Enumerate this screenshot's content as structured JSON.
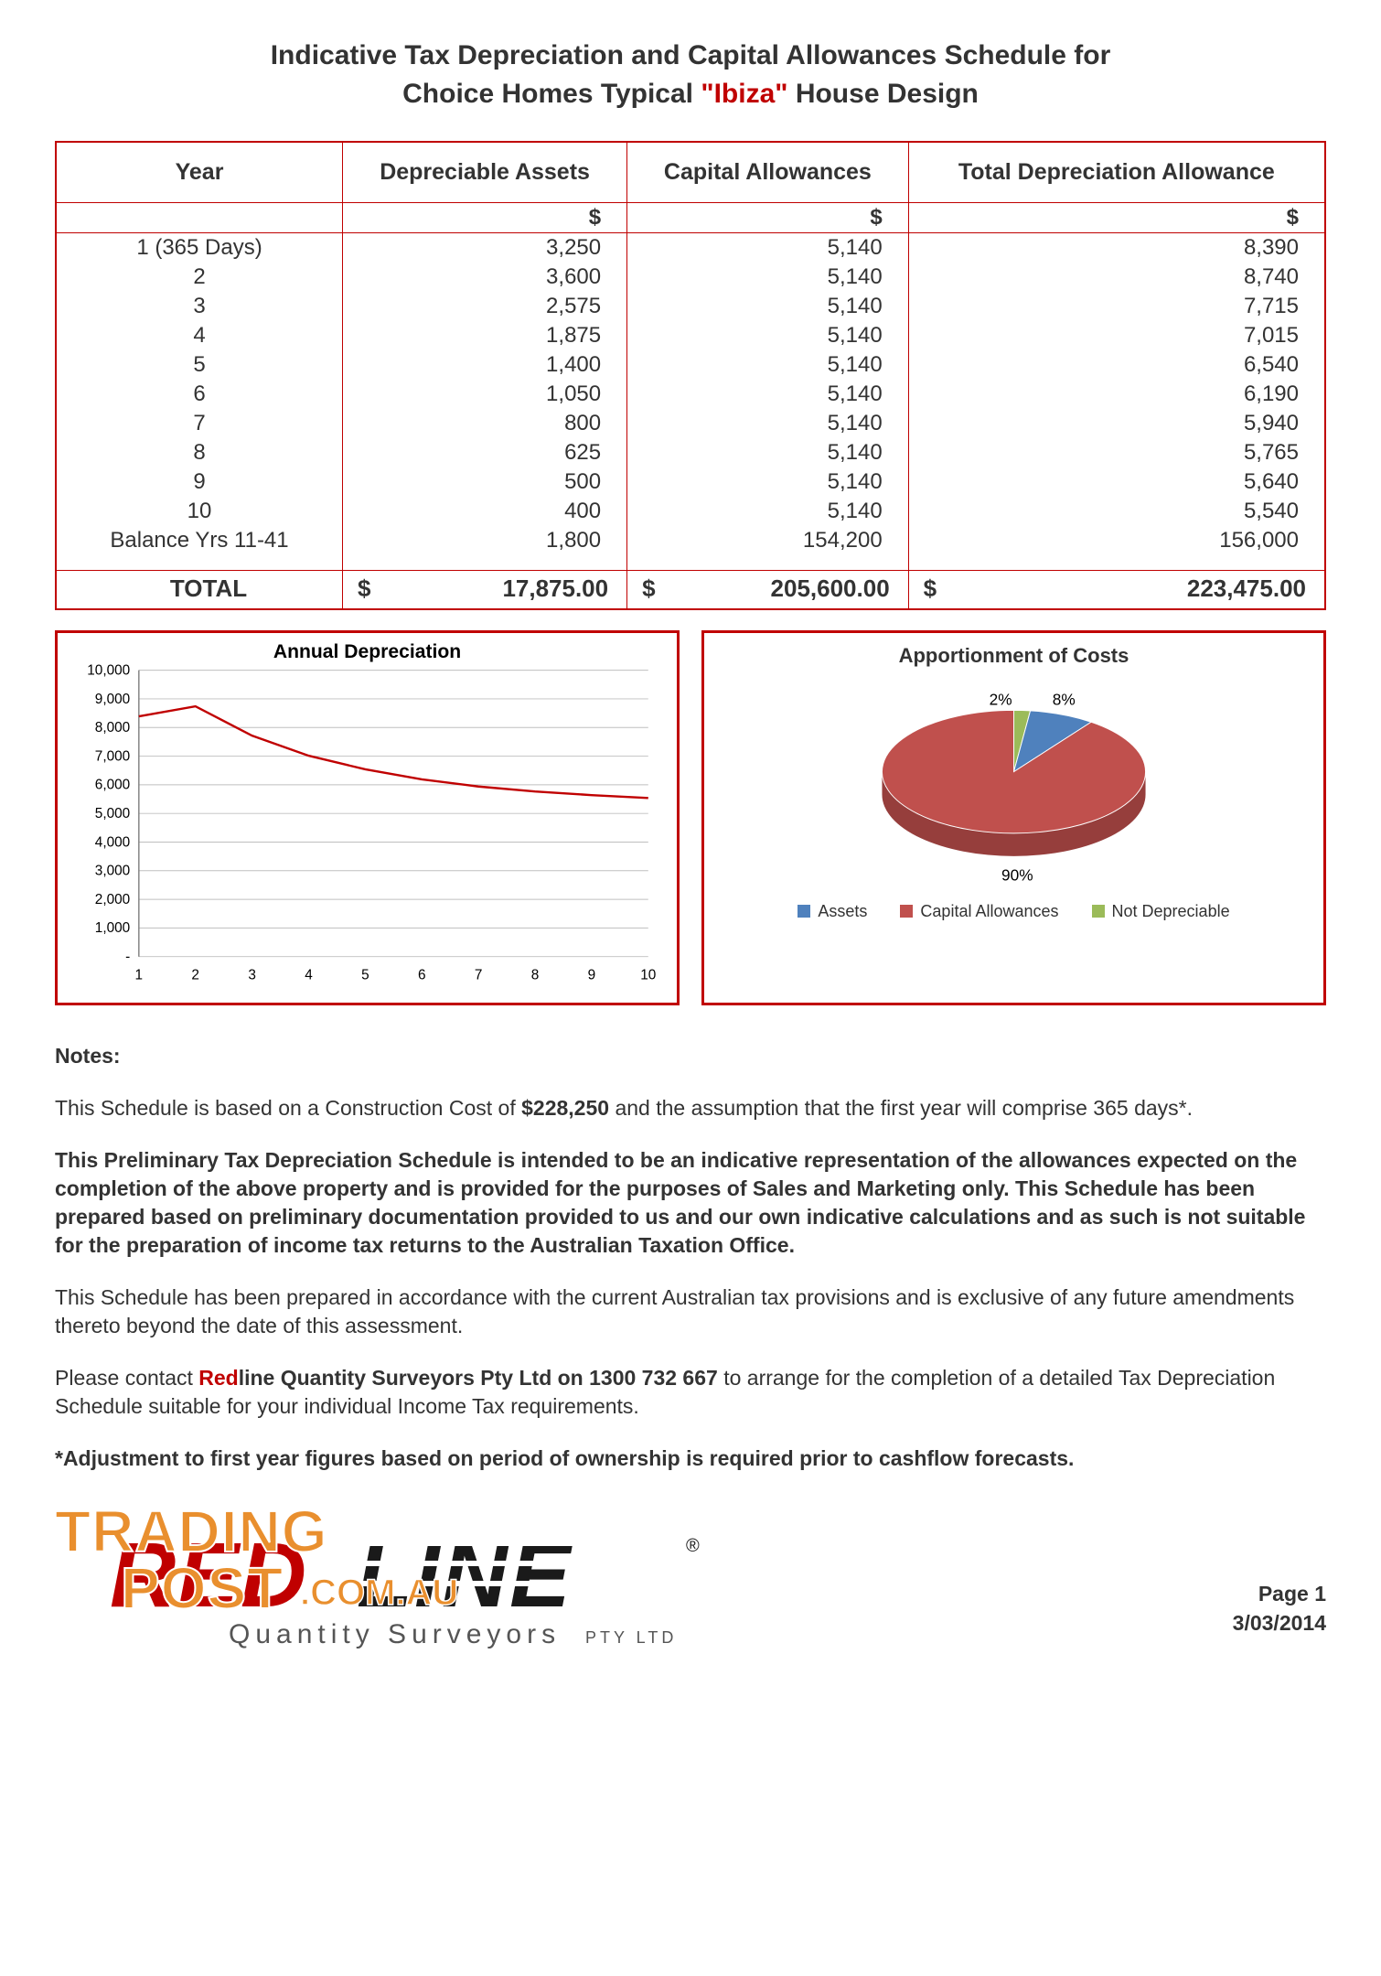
{
  "title": {
    "line1": "Indicative Tax Depreciation and Capital Allowances Schedule for",
    "line2_pre": "Choice Homes Typical ",
    "line2_q": "\"Ibiza\"",
    "line2_post": " House Design"
  },
  "table": {
    "headers": [
      "Year",
      "Depreciable Assets",
      "Capital Allowances",
      "Total Depreciation Allowance"
    ],
    "unit": "$",
    "rows": [
      {
        "year": "1 (365 Days)",
        "assets": "3,250",
        "capital": "5,140",
        "total": "8,390"
      },
      {
        "year": "2",
        "assets": "3,600",
        "capital": "5,140",
        "total": "8,740"
      },
      {
        "year": "3",
        "assets": "2,575",
        "capital": "5,140",
        "total": "7,715"
      },
      {
        "year": "4",
        "assets": "1,875",
        "capital": "5,140",
        "total": "7,015"
      },
      {
        "year": "5",
        "assets": "1,400",
        "capital": "5,140",
        "total": "6,540"
      },
      {
        "year": "6",
        "assets": "1,050",
        "capital": "5,140",
        "total": "6,190"
      },
      {
        "year": "7",
        "assets": "800",
        "capital": "5,140",
        "total": "5,940"
      },
      {
        "year": "8",
        "assets": "625",
        "capital": "5,140",
        "total": "5,765"
      },
      {
        "year": "9",
        "assets": "500",
        "capital": "5,140",
        "total": "5,640"
      },
      {
        "year": "10",
        "assets": "400",
        "capital": "5,140",
        "total": "5,540"
      },
      {
        "year": "Balance Yrs 11-41",
        "assets": "1,800",
        "capital": "154,200",
        "total": "156,000"
      }
    ],
    "total_label": "TOTAL",
    "totals": {
      "assets": "17,875.00",
      "capital": "205,600.00",
      "total": "223,475.00"
    }
  },
  "line_chart": {
    "type": "line",
    "title": "Annual Depreciation",
    "x": [
      1,
      2,
      3,
      4,
      5,
      6,
      7,
      8,
      9,
      10
    ],
    "y": [
      8390,
      8740,
      7715,
      7015,
      6540,
      6190,
      5940,
      5765,
      5640,
      5540
    ],
    "ylim": [
      0,
      10000
    ],
    "ytick_step": 1000,
    "y_labels": [
      "-",
      "1,000",
      "2,000",
      "3,000",
      "4,000",
      "5,000",
      "6,000",
      "7,000",
      "8,000",
      "9,000",
      "10,000"
    ],
    "xlim": [
      1,
      10
    ],
    "line_color": "#c00000",
    "line_width": 2.5,
    "grid_color": "#bfbfbf",
    "axis_color": "#808080",
    "tick_fontsize": 16,
    "title_fontsize": 22,
    "background_color": "#ffffff"
  },
  "pie_chart": {
    "type": "pie-3d",
    "title": "Apportionment of Costs",
    "slices": [
      {
        "label": "Assets",
        "pct": 8,
        "color": "#4f81bd"
      },
      {
        "label": "Capital Allowances",
        "pct": 90,
        "color": "#c0504d"
      },
      {
        "label": "Not Depreciable",
        "pct": 2,
        "color": "#9bbb59"
      }
    ],
    "label_fontsize": 18,
    "title_fontsize": 22,
    "depth_shade": 0.78,
    "background_color": "#ffffff"
  },
  "notes": {
    "heading": "Notes:",
    "p1_pre": "This Schedule is based on a Construction Cost of ",
    "p1_cost": "$228,250",
    "p1_post": " and the assumption that the first year will comprise 365 days*.",
    "p2": "This Preliminary Tax Depreciation Schedule is intended to be an indicative representation of the allowances expected on the completion of the above property and is provided for the purposes of Sales and Marketing only.  This Schedule has been prepared based on preliminary documentation provided to us and our own indicative calculations and as such is not suitable for the preparation of income tax returns to the Australian Taxation Office.",
    "p3": "This Schedule has been prepared in accordance with the current Australian tax provisions and is exclusive of any future amendments thereto beyond the date of this assessment.",
    "p4_pre": "Please contact ",
    "p4_red": "Red",
    "p4_bold": "line Quantity Surveyors Pty Ltd on 1300 732 667",
    "p4_post": " to arrange for the completion of a detailed Tax Depreciation Schedule suitable for your individual Income Tax requirements.",
    "p5": "*Adjustment to first year figures based on period of ownership is required prior to cashflow forecasts."
  },
  "footer": {
    "logo_redline": {
      "red": "RED",
      "line": "LINE",
      "sub": "Quantity Surveyors",
      "suffix": "PTY LTD",
      "red_color": "#c00000",
      "black_color": "#1a1a1a",
      "sub_color": "#555555"
    },
    "logo_tradingpost": {
      "top": "TRADING",
      "bottom": "POST",
      "suffix": ".COM.AU",
      "fill": "#e98f2e",
      "stroke": "#ffffff"
    },
    "page": "Page 1",
    "date": "3/03/2014"
  }
}
